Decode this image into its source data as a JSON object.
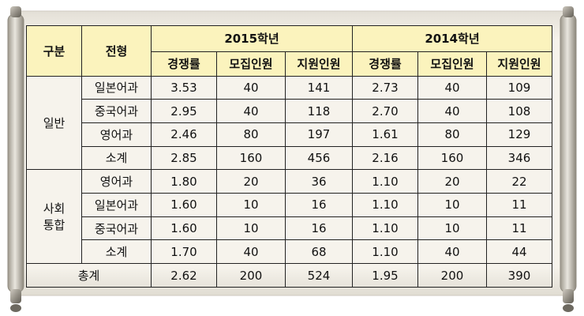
{
  "header": {
    "group_label": "구분",
    "type_label": "전형",
    "year_2015": "2015학년",
    "year_2014": "2014학년",
    "cols_2015": [
      "경쟁률",
      "모집인원",
      "지원인원"
    ],
    "cols_2014": [
      "경쟁률",
      "모집인원",
      "지원인원"
    ]
  },
  "groups": [
    {
      "name": "일반",
      "rows": [
        {
          "type": "일본어과",
          "r15": "3.53",
          "m15": "40",
          "a15": "141",
          "r14": "2.73",
          "m14": "40",
          "a14": "109"
        },
        {
          "type": "중국어과",
          "r15": "2.95",
          "m15": "40",
          "a15": "118",
          "r14": "2.70",
          "m14": "40",
          "a14": "108"
        },
        {
          "type": "영어과",
          "r15": "2.46",
          "m15": "80",
          "a15": "197",
          "r14": "1.61",
          "m14": "80",
          "a14": "129"
        },
        {
          "type": "소계",
          "r15": "2.85",
          "m15": "160",
          "a15": "456",
          "r14": "2.16",
          "m14": "160",
          "a14": "346"
        }
      ]
    },
    {
      "name_line1": "사회",
      "name_line2": "통합",
      "rows": [
        {
          "type": "영어과",
          "r15": "1.80",
          "m15": "20",
          "a15": "36",
          "r14": "1.10",
          "m14": "20",
          "a14": "22"
        },
        {
          "type": "일본어과",
          "r15": "1.60",
          "m15": "10",
          "a15": "16",
          "r14": "1.10",
          "m14": "10",
          "a14": "11"
        },
        {
          "type": "중국어과",
          "r15": "1.60",
          "m15": "10",
          "a15": "16",
          "r14": "1.10",
          "m14": "10",
          "a14": "11"
        },
        {
          "type": "소계",
          "r15": "1.70",
          "m15": "40",
          "a15": "68",
          "r14": "1.10",
          "m14": "40",
          "a14": "44"
        }
      ]
    }
  ],
  "total": {
    "label": "총계",
    "r15": "2.62",
    "m15": "200",
    "a15": "524",
    "r14": "1.95",
    "m14": "200",
    "a14": "390"
  },
  "colors": {
    "header_bg": "#fbf3bd",
    "scroll_paper": "#f2efe8",
    "scroll_rod": "#8a857a"
  }
}
